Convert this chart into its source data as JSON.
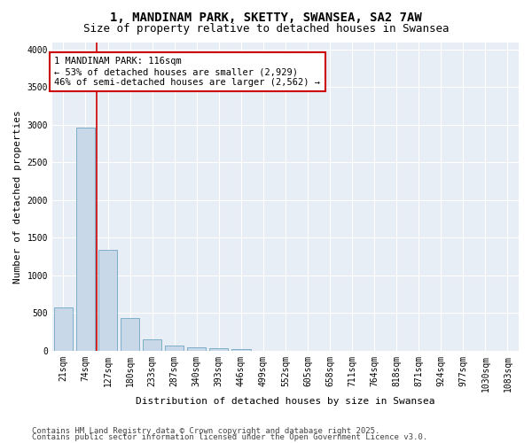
{
  "title_line1": "1, MANDINAM PARK, SKETTY, SWANSEA, SA2 7AW",
  "title_line2": "Size of property relative to detached houses in Swansea",
  "xlabel": "Distribution of detached houses by size in Swansea",
  "ylabel": "Number of detached properties",
  "bar_color": "#c8d8e8",
  "bar_edge_color": "#5a9aba",
  "categories": [
    "21sqm",
    "74sqm",
    "127sqm",
    "180sqm",
    "233sqm",
    "287sqm",
    "340sqm",
    "393sqm",
    "446sqm",
    "499sqm",
    "552sqm",
    "605sqm",
    "658sqm",
    "711sqm",
    "764sqm",
    "818sqm",
    "871sqm",
    "924sqm",
    "977sqm",
    "1030sqm",
    "1083sqm"
  ],
  "values": [
    580,
    2970,
    1340,
    430,
    155,
    75,
    50,
    35,
    25,
    0,
    0,
    0,
    0,
    0,
    0,
    0,
    0,
    0,
    0,
    0,
    0
  ],
  "ylim": [
    0,
    4100
  ],
  "yticks": [
    0,
    500,
    1000,
    1500,
    2000,
    2500,
    3000,
    3500,
    4000
  ],
  "vline_color": "#cc0000",
  "annotation_text": "1 MANDINAM PARK: 116sqm\n← 53% of detached houses are smaller (2,929)\n46% of semi-detached houses are larger (2,562) →",
  "box_color": "#cc0000",
  "footer_line1": "Contains HM Land Registry data © Crown copyright and database right 2025.",
  "footer_line2": "Contains public sector information licensed under the Open Government Licence v3.0.",
  "bg_color": "#e8eef5",
  "grid_color": "#ffffff",
  "fig_bg_color": "#ffffff",
  "title_fontsize": 10,
  "subtitle_fontsize": 9,
  "axis_label_fontsize": 8,
  "tick_fontsize": 7,
  "annotation_fontsize": 7.5,
  "footer_fontsize": 6.5
}
